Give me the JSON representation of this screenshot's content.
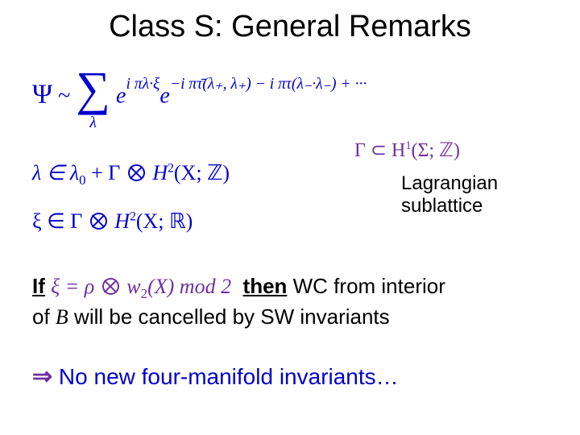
{
  "title": "Class S: General Remarks",
  "eq1": {
    "psi": "Ψ",
    "sim": "~",
    "sum_idx": "λ",
    "e": "e",
    "exp1": "i πλ·ξ",
    "exp2": "−i πτ̄(λ₊, λ₊) − i πτ(λ₋·λ₋) + ···"
  },
  "eq2": {
    "lhs": "λ ∈ λ",
    "sub0": "0",
    "plus": " + Γ ",
    "rhs": " H",
    "sup2": "2",
    "paren": "(X; ℤ)"
  },
  "eq3": {
    "text1": "Γ ⊂ H",
    "sup1": "1",
    "text2": "(Σ; ℤ)"
  },
  "label": {
    "l1": "Lagrangian",
    "l2": "sublattice"
  },
  "eq4": {
    "lhs": "ξ ∈ Γ ",
    "rhs": " H",
    "sup2": "2",
    "paren": "(X; ℝ)"
  },
  "line5": {
    "if": "If",
    "cond1": " ξ = ρ ",
    "cond2": " w",
    "sub2": "2",
    "cond3": "(X) mod 2",
    "then": "then",
    "rest": " WC from interior"
  },
  "line6": {
    "of": "of ",
    "B": "B",
    "rest": " will be cancelled by SW invariants"
  },
  "line7": {
    "arrow": "⇒",
    "text": " No new four-manifold invariants…"
  }
}
